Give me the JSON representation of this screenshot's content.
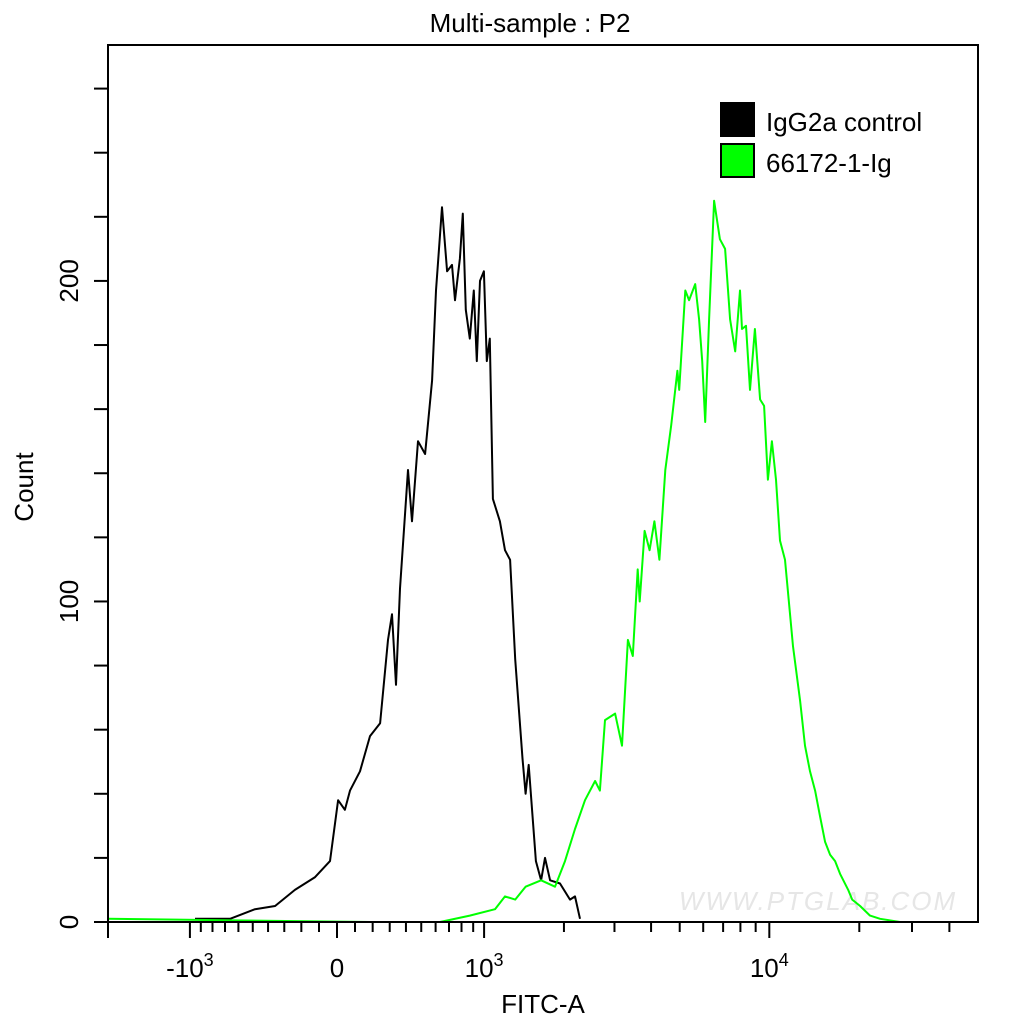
{
  "chart_data": {
    "type": "line",
    "title": "Multi-sample : P2",
    "xlabel": "FITC-A",
    "ylabel": "Count",
    "x_scale": "biexponential",
    "xlim": [
      -2030,
      49800
    ],
    "ylim": [
      0,
      273.6
    ],
    "grid": false,
    "legend_position": "top-right",
    "x_major_ticks": [
      {
        "value": -1000,
        "label_base": "-10",
        "label_exp": "3"
      },
      {
        "value": 0,
        "label_base": "0",
        "label_exp": ""
      },
      {
        "value": 1000,
        "label_base": "10",
        "label_exp": "3"
      },
      {
        "value": 10000,
        "label_base": "10",
        "label_exp": "4"
      }
    ],
    "x_minor_ticks": [
      -900,
      -800,
      -700,
      -600,
      -500,
      -400,
      -300,
      -200,
      -100,
      100,
      200,
      300,
      400,
      500,
      600,
      700,
      800,
      900,
      2000,
      3000,
      4000,
      5000,
      6000,
      7000,
      8000,
      9000,
      20000,
      30000,
      40000
    ],
    "y_major_ticks": [
      0,
      100,
      200
    ],
    "y_minor_ticks": [
      20,
      40,
      60,
      80,
      120,
      140,
      160,
      180,
      220,
      240,
      260
    ],
    "series": [
      {
        "name": "IgG2a control",
        "color": "#000000",
        "points": [
          [
            -952,
            1
          ],
          [
            -661,
            1
          ],
          [
            -485,
            4
          ],
          [
            -356,
            5
          ],
          [
            -237,
            10
          ],
          [
            -122,
            14
          ],
          [
            -39,
            19
          ],
          [
            6,
            38
          ],
          [
            44,
            35
          ],
          [
            72,
            41
          ],
          [
            128,
            47
          ],
          [
            185,
            58
          ],
          [
            243,
            62
          ],
          [
            290,
            88
          ],
          [
            314,
            96
          ],
          [
            338,
            74
          ],
          [
            363,
            104
          ],
          [
            413,
            141
          ],
          [
            439,
            125
          ],
          [
            478,
            150
          ],
          [
            526,
            146
          ],
          [
            575,
            169
          ],
          [
            603,
            197
          ],
          [
            647,
            223
          ],
          [
            685,
            203
          ],
          [
            723,
            205
          ],
          [
            747,
            194
          ],
          [
            787,
            207
          ],
          [
            811,
            221
          ],
          [
            836,
            191
          ],
          [
            870,
            182
          ],
          [
            905,
            197
          ],
          [
            932,
            175
          ],
          [
            962,
            200
          ],
          [
            998,
            203
          ],
          [
            1026,
            175
          ],
          [
            1055,
            182
          ],
          [
            1086,
            132
          ],
          [
            1158,
            125
          ],
          [
            1212,
            116
          ],
          [
            1268,
            113
          ],
          [
            1326,
            82
          ],
          [
            1413,
            51
          ],
          [
            1451,
            40
          ],
          [
            1490,
            49
          ],
          [
            1584,
            19
          ],
          [
            1655,
            13
          ],
          [
            1711,
            20
          ],
          [
            1784,
            13
          ],
          [
            1937,
            12
          ],
          [
            2101,
            7
          ],
          [
            2189,
            8
          ],
          [
            2278,
            1
          ]
        ]
      },
      {
        "name": "66172-1-Ig",
        "color": "#00ff00",
        "points": [
          [
            -2032,
            1
          ],
          [
            185,
            0
          ],
          [
            632,
            0
          ],
          [
            870,
            2
          ],
          [
            1107,
            4
          ],
          [
            1212,
            8
          ],
          [
            1326,
            7
          ],
          [
            1451,
            11
          ],
          [
            1655,
            13
          ],
          [
            1859,
            11
          ],
          [
            2017,
            19
          ],
          [
            2189,
            29
          ],
          [
            2372,
            38
          ],
          [
            2572,
            44
          ],
          [
            2673,
            41
          ],
          [
            2784,
            63
          ],
          [
            3014,
            65
          ],
          [
            3185,
            55
          ],
          [
            3335,
            88
          ],
          [
            3467,
            83
          ],
          [
            3602,
            110
          ],
          [
            3660,
            100
          ],
          [
            3802,
            122
          ],
          [
            3953,
            116
          ],
          [
            4104,
            125
          ],
          [
            4270,
            113
          ],
          [
            4471,
            141
          ],
          [
            4680,
            155
          ],
          [
            4910,
            172
          ],
          [
            4982,
            166
          ],
          [
            5220,
            197
          ],
          [
            5378,
            194
          ],
          [
            5638,
            199
          ],
          [
            5810,
            188
          ],
          [
            5954,
            175
          ],
          [
            6091,
            156
          ],
          [
            6278,
            188
          ],
          [
            6530,
            225
          ],
          [
            6830,
            213
          ],
          [
            7106,
            210
          ],
          [
            7387,
            188
          ],
          [
            7682,
            178
          ],
          [
            7978,
            197
          ],
          [
            8100,
            185
          ],
          [
            8352,
            186
          ],
          [
            8618,
            166
          ],
          [
            8950,
            185
          ],
          [
            9310,
            163
          ],
          [
            9605,
            161
          ],
          [
            9893,
            138
          ],
          [
            10202,
            150
          ],
          [
            10526,
            138
          ],
          [
            10858,
            119
          ],
          [
            11282,
            113
          ],
          [
            12002,
            86
          ],
          [
            12679,
            69
          ],
          [
            13169,
            55
          ],
          [
            13680,
            47
          ],
          [
            14227,
            41
          ],
          [
            14782,
            33
          ],
          [
            15372,
            25
          ],
          [
            15970,
            21
          ],
          [
            16603,
            19
          ],
          [
            17258,
            15
          ],
          [
            18360,
            10
          ],
          [
            18929,
            7
          ],
          [
            20124,
            5
          ],
          [
            21722,
            2
          ],
          [
            23465,
            1
          ],
          [
            27360,
            0
          ],
          [
            34488,
            0
          ],
          [
            43416,
            0
          ]
        ]
      }
    ],
    "watermark": "WWW.PTGLAB.COM"
  }
}
